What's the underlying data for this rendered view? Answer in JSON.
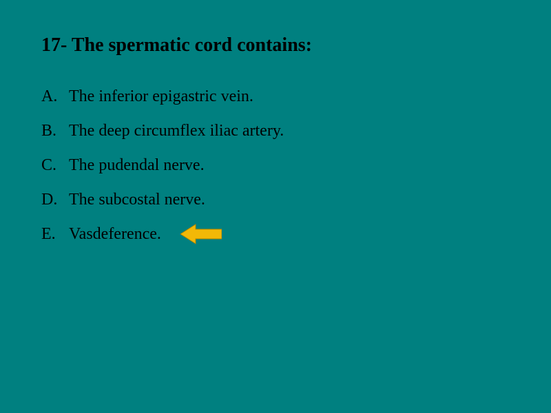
{
  "slide": {
    "background_color": "#008080",
    "title": "17- The spermatic cord contains:",
    "title_color": "#000000",
    "title_fontsize": 28,
    "option_color": "#000000",
    "option_fontsize": 24,
    "line_height": 40,
    "options": [
      {
        "letter": "A.",
        "text": "The inferior epigastric vein."
      },
      {
        "letter": "B.",
        "text": "The deep circumflex iliac artery."
      },
      {
        "letter": "C.",
        "text": "The pudendal nerve."
      },
      {
        "letter": "D.",
        "text": "The subcostal nerve."
      },
      {
        "letter": "E.",
        "text": "Vasdeference."
      }
    ],
    "answer_index": 4,
    "arrow": {
      "fill": "#f2b807",
      "stroke": "#b38600",
      "width": 60,
      "height": 32
    }
  }
}
